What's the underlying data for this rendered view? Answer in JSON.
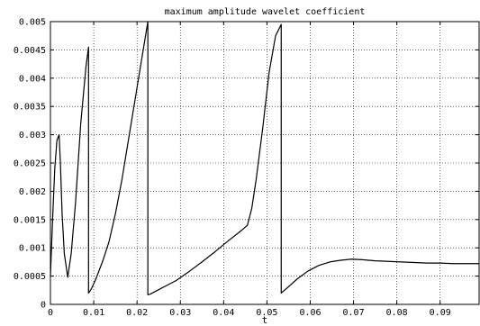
{
  "chart_data": {
    "type": "line",
    "title": "maximum amplitude wavelet coefficient",
    "xlabel": "t",
    "ylabel": "",
    "xlim": [
      0,
      0.099
    ],
    "ylim": [
      0,
      0.005
    ],
    "grid": true,
    "x_ticks": [
      {
        "value": 0,
        "label": "0"
      },
      {
        "value": 0.01,
        "label": "0.01"
      },
      {
        "value": 0.02,
        "label": "0.02"
      },
      {
        "value": 0.03,
        "label": "0.03"
      },
      {
        "value": 0.04,
        "label": "0.04"
      },
      {
        "value": 0.05,
        "label": "0.05"
      },
      {
        "value": 0.06,
        "label": "0.06"
      },
      {
        "value": 0.07,
        "label": "0.07"
      },
      {
        "value": 0.08,
        "label": "0.08"
      },
      {
        "value": 0.09,
        "label": "0.09"
      }
    ],
    "y_ticks": [
      {
        "value": 0,
        "label": "0"
      },
      {
        "value": 0.0005,
        "label": "0.0005"
      },
      {
        "value": 0.001,
        "label": "0.001"
      },
      {
        "value": 0.0015,
        "label": "0.0015"
      },
      {
        "value": 0.002,
        "label": "0.002"
      },
      {
        "value": 0.0025,
        "label": "0.0025"
      },
      {
        "value": 0.003,
        "label": "0.003"
      },
      {
        "value": 0.0035,
        "label": "0.0035"
      },
      {
        "value": 0.004,
        "label": "0.004"
      },
      {
        "value": 0.0045,
        "label": "0.0045"
      },
      {
        "value": 0.005,
        "label": "0.005"
      }
    ],
    "series": [
      {
        "color": "#000000",
        "x": [
          0,
          0.0005,
          0.001,
          0.0015,
          0.002,
          0.0023,
          0.0027,
          0.0032,
          0.004,
          0.0048,
          0.0058,
          0.007,
          0.0082,
          0.0088,
          0.0088,
          0.0095,
          0.0105,
          0.012,
          0.0135,
          0.015,
          0.0165,
          0.018,
          0.0195,
          0.021,
          0.0225,
          0.0225,
          0.023,
          0.0245,
          0.0265,
          0.029,
          0.032,
          0.035,
          0.038,
          0.041,
          0.044,
          0.0455,
          0.0465,
          0.0475,
          0.049,
          0.0505,
          0.052,
          0.0533,
          0.0533,
          0.0545,
          0.057,
          0.0595,
          0.062,
          0.0645,
          0.067,
          0.0695,
          0.072,
          0.075,
          0.078,
          0.081,
          0.084,
          0.087,
          0.09,
          0.093,
          0.096,
          0.099
        ],
        "y": [
          0.0005,
          0.0015,
          0.0024,
          0.0029,
          0.003,
          0.0025,
          0.0016,
          0.0009,
          0.00048,
          0.0009,
          0.0018,
          0.0032,
          0.0042,
          0.00455,
          0.0002,
          0.00028,
          0.00045,
          0.00075,
          0.0011,
          0.0016,
          0.0022,
          0.0029,
          0.0036,
          0.0043,
          0.005,
          0.00017,
          0.00018,
          0.00024,
          0.00032,
          0.00042,
          0.00058,
          0.00075,
          0.00093,
          0.00112,
          0.0013,
          0.0014,
          0.0017,
          0.0022,
          0.0031,
          0.0041,
          0.00475,
          0.00495,
          0.0002,
          0.00028,
          0.00045,
          0.00059,
          0.00069,
          0.00075,
          0.00078,
          0.0008,
          0.00079,
          0.00077,
          0.00076,
          0.00075,
          0.00074,
          0.00073,
          0.00073,
          0.00072,
          0.00072,
          0.00072
        ]
      }
    ]
  }
}
